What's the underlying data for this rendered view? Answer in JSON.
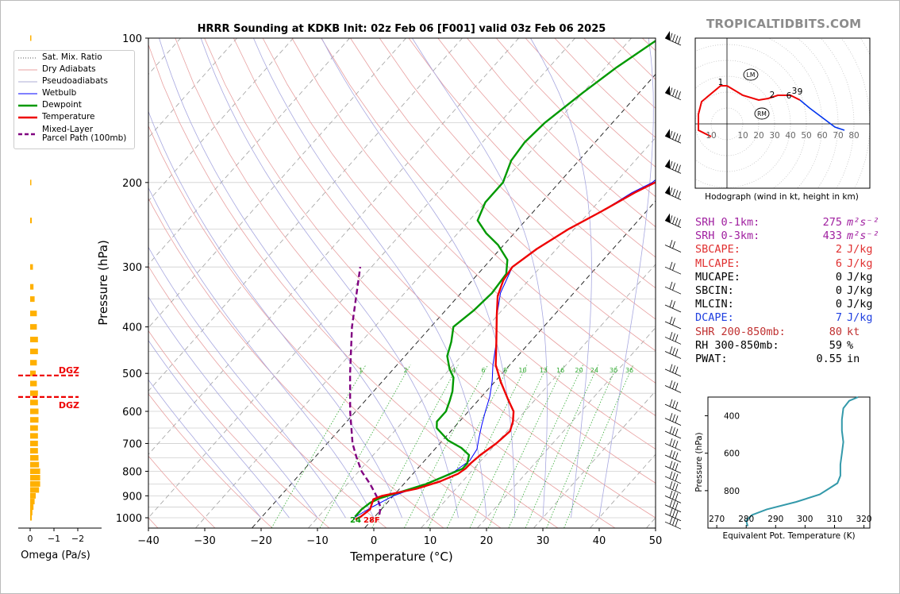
{
  "brand": "TROPICALTIDBITS.COM",
  "chart_data": [
    {
      "type": "line",
      "name": "skew-t",
      "title": "HRRR Sounding at KDKB Init: 02z Feb 06 [F001] valid 03z Feb 06 2025",
      "xlabel": "Temperature (°C)",
      "ylabel": "Pressure (hPa)",
      "xlim": [
        -40,
        50
      ],
      "ylim": [
        1050,
        100
      ],
      "y_scale": "log",
      "x_ticks": [
        -40,
        -30,
        -20,
        -10,
        0,
        10,
        20,
        30,
        40,
        50
      ],
      "y_ticks": [
        100,
        200,
        300,
        400,
        500,
        600,
        700,
        800,
        900,
        1000
      ],
      "mixing_ratio_labels": [
        "1",
        "2",
        "4",
        "6",
        "8",
        "10",
        "13",
        "16",
        "20",
        "24",
        "30",
        "36"
      ],
      "surface_labels": {
        "dewpoint": "24",
        "temperature": "28F"
      },
      "legend": [
        {
          "label": "Sat. Mix. Ratio",
          "color": "#555555",
          "style": "dotted"
        },
        {
          "label": "Dry Adiabats",
          "color": "#e08080",
          "style": "solid-thin"
        },
        {
          "label": "Pseudoadiabats",
          "color": "#9090c8",
          "style": "solid-thin"
        },
        {
          "label": "Wetbulb",
          "color": "#0000ff",
          "style": "solid"
        },
        {
          "label": "Dewpoint",
          "color": "#009900",
          "style": "solid-thick"
        },
        {
          "label": "Temperature",
          "color": "#ee0000",
          "style": "solid-thick"
        },
        {
          "label": "Mixed-Layer\nParcel Path (100mb)",
          "color": "#800080",
          "style": "dashed"
        }
      ],
      "series": {
        "temperature": [
          [
            1008,
            -3
          ],
          [
            995,
            -2.5
          ],
          [
            960,
            -2
          ],
          [
            915,
            -3
          ],
          [
            900,
            -2
          ],
          [
            870,
            3
          ],
          [
            840,
            6
          ],
          [
            810,
            8
          ],
          [
            790,
            8.5
          ],
          [
            770,
            8.6
          ],
          [
            740,
            9
          ],
          [
            700,
            10
          ],
          [
            660,
            10.5
          ],
          [
            630,
            9.5
          ],
          [
            600,
            8
          ],
          [
            565,
            5
          ],
          [
            520,
            1
          ],
          [
            480,
            -2.5
          ],
          [
            430,
            -6
          ],
          [
            380,
            -10
          ],
          [
            345,
            -13
          ],
          [
            320,
            -14.5
          ],
          [
            300,
            -15
          ],
          [
            275,
            -13.5
          ],
          [
            250,
            -11
          ],
          [
            230,
            -8
          ],
          [
            210,
            -5
          ],
          [
            200,
            -3
          ],
          [
            185,
            -2
          ],
          [
            165,
            -1
          ],
          [
            150,
            -0.5
          ],
          [
            130,
            0
          ],
          [
            115,
            0.3
          ],
          [
            100,
            0.5
          ]
        ],
        "dewpoint": [
          [
            995,
            -3.5
          ],
          [
            960,
            -3.5
          ],
          [
            930,
            -3
          ],
          [
            910,
            -2
          ],
          [
            880,
            1
          ],
          [
            850,
            4
          ],
          [
            820,
            6
          ],
          [
            790,
            8
          ],
          [
            770,
            8
          ],
          [
            740,
            7
          ],
          [
            715,
            4.5
          ],
          [
            690,
            1
          ],
          [
            650,
            -3
          ],
          [
            630,
            -4
          ],
          [
            600,
            -4
          ],
          [
            570,
            -5
          ],
          [
            545,
            -6
          ],
          [
            510,
            -8
          ],
          [
            490,
            -10
          ],
          [
            460,
            -12.5
          ],
          [
            430,
            -14
          ],
          [
            400,
            -16
          ],
          [
            370,
            -15
          ],
          [
            340,
            -14.5
          ],
          [
            310,
            -15
          ],
          [
            290,
            -17
          ],
          [
            270,
            -21
          ],
          [
            255,
            -25
          ],
          [
            240,
            -28.5
          ],
          [
            220,
            -30
          ],
          [
            200,
            -30
          ],
          [
            180,
            -32
          ],
          [
            165,
            -32.5
          ],
          [
            150,
            -32
          ],
          [
            130,
            -30
          ],
          [
            115,
            -28
          ],
          [
            100,
            -25
          ]
        ],
        "wetbulb": [
          [
            1000,
            -3.5
          ],
          [
            950,
            -2
          ],
          [
            900,
            0
          ],
          [
            850,
            4
          ],
          [
            800,
            7
          ],
          [
            760,
            8
          ],
          [
            720,
            7.5
          ],
          [
            680,
            6
          ],
          [
            640,
            4.5
          ],
          [
            600,
            3
          ],
          [
            560,
            1.5
          ],
          [
            520,
            -0.5
          ],
          [
            480,
            -3
          ],
          [
            430,
            -6
          ],
          [
            380,
            -10
          ],
          [
            340,
            -13
          ],
          [
            300,
            -15
          ],
          [
            275,
            -13.5
          ],
          [
            250,
            -11
          ],
          [
            230,
            -8
          ],
          [
            210,
            -5.5
          ],
          [
            200,
            -3.5
          ],
          [
            170,
            -1.5
          ],
          [
            150,
            -0.8
          ],
          [
            130,
            -0.3
          ],
          [
            100,
            0.5
          ]
        ],
        "parcel_path": [
          [
            985,
            0.5
          ],
          [
            950,
            -0.5
          ],
          [
            900,
            -3
          ],
          [
            850,
            -6
          ],
          [
            800,
            -9.5
          ],
          [
            750,
            -12.5
          ],
          [
            700,
            -15.5
          ],
          [
            600,
            -21
          ],
          [
            500,
            -27
          ],
          [
            400,
            -34
          ],
          [
            300,
            -42
          ]
        ]
      },
      "wind_barbs_hPa": [
        100,
        130,
        160,
        185,
        210,
        240,
        270,
        300,
        330,
        360,
        390,
        420,
        450,
        490,
        530,
        580,
        620,
        660,
        700,
        740,
        780,
        820,
        860,
        900,
        940,
        980,
        1020
      ]
    },
    {
      "type": "bar",
      "name": "omega",
      "xlabel": "Omega (Pa/s)",
      "x_ticks": [
        "0",
        "−1",
        "−2"
      ],
      "xlim": [
        1,
        -2.5
      ],
      "dgz_label": "DGZ",
      "dgz_hPa": [
        505,
        560
      ],
      "color": "#ffb000",
      "levels": [
        [
          100,
          0.02
        ],
        [
          150,
          0.02
        ],
        [
          200,
          0.02
        ],
        [
          240,
          0.03
        ],
        [
          300,
          0.05
        ],
        [
          330,
          0.06
        ],
        [
          350,
          0.08
        ],
        [
          375,
          0.12
        ],
        [
          400,
          0.12
        ],
        [
          425,
          0.14
        ],
        [
          450,
          0.14
        ],
        [
          475,
          0.12
        ],
        [
          500,
          0.1
        ],
        [
          525,
          0.12
        ],
        [
          550,
          0.14
        ],
        [
          575,
          0.14
        ],
        [
          600,
          0.15
        ],
        [
          625,
          0.15
        ],
        [
          650,
          0.14
        ],
        [
          675,
          0.14
        ],
        [
          700,
          0.14
        ],
        [
          725,
          0.14
        ],
        [
          750,
          0.15
        ],
        [
          775,
          0.16
        ],
        [
          800,
          0.18
        ],
        [
          825,
          0.18
        ],
        [
          850,
          0.18
        ],
        [
          875,
          0.16
        ],
        [
          900,
          0.1
        ],
        [
          925,
          0.08
        ],
        [
          950,
          0.06
        ],
        [
          975,
          0.04
        ],
        [
          1000,
          0.03
        ]
      ]
    },
    {
      "type": "line",
      "name": "hodograph",
      "xlabel": "Hodograph (wind in kt, height in km)",
      "ring_labels": [
        "10",
        "10",
        "20",
        "30",
        "40",
        "50",
        "60",
        "70",
        "80"
      ],
      "height_labels": [
        "1",
        "2",
        "3",
        "6",
        "9"
      ],
      "markers": [
        "LM",
        "RM"
      ],
      "red_path": [
        [
          -10,
          -8
        ],
        [
          -18,
          -4
        ],
        [
          -18,
          6
        ],
        [
          -16,
          14
        ],
        [
          -4,
          24
        ],
        [
          0,
          24
        ],
        [
          10,
          18
        ],
        [
          20,
          15
        ],
        [
          26,
          16
        ],
        [
          32,
          18
        ],
        [
          40,
          18
        ],
        [
          44,
          16
        ],
        [
          46,
          15
        ]
      ],
      "blue_path": [
        [
          46,
          15
        ],
        [
          52,
          10
        ],
        [
          60,
          4
        ],
        [
          68,
          -2
        ],
        [
          74,
          -4
        ]
      ]
    },
    {
      "type": "line",
      "name": "theta-e",
      "xlabel": "Equivalent Pot. Temperature (K)",
      "ylabel": "Pressure (hPa)",
      "x_ticks": [
        "270",
        "280",
        "290",
        "300",
        "310",
        "320"
      ],
      "y_ticks": [
        "400",
        "600",
        "800"
      ],
      "xlim": [
        267,
        322
      ],
      "ylim": [
        1000,
        300
      ],
      "color": "#3399aa",
      "profile": [
        [
          300,
          318
        ],
        [
          320,
          315
        ],
        [
          360,
          313
        ],
        [
          420,
          312.5
        ],
        [
          480,
          312.5
        ],
        [
          540,
          313
        ],
        [
          600,
          312.5
        ],
        [
          660,
          312
        ],
        [
          720,
          312
        ],
        [
          760,
          311
        ],
        [
          790,
          308
        ],
        [
          820,
          305
        ],
        [
          860,
          297
        ],
        [
          900,
          287
        ],
        [
          930,
          282
        ],
        [
          960,
          280
        ],
        [
          990,
          280.5
        ]
      ]
    }
  ],
  "params": [
    {
      "label": "SRH 0-1km:",
      "value": "275",
      "unit": "m²s⁻²",
      "color": "#a020a0"
    },
    {
      "label": "SRH 0-3km:",
      "value": "433",
      "unit": "m²s⁻²",
      "color": "#a020a0"
    },
    {
      "label": "SBCAPE:",
      "value": "2",
      "unit": "J/kg",
      "color": "#e03030"
    },
    {
      "label": "MLCAPE:",
      "value": "6",
      "unit": "J/kg",
      "color": "#e03030"
    },
    {
      "label": "MUCAPE:",
      "value": "0",
      "unit": "J/kg",
      "color": "#000000"
    },
    {
      "label": "SBCIN:",
      "value": "0",
      "unit": "J/kg",
      "color": "#000000"
    },
    {
      "label": "MLCIN:",
      "value": "0",
      "unit": "J/kg",
      "color": "#000000"
    },
    {
      "label": "DCAPE:",
      "value": "7",
      "unit": "J/kg",
      "color": "#2040e0"
    },
    {
      "label": "SHR 200-850mb:",
      "value": "80",
      "unit": "kt",
      "color": "#c03030"
    },
    {
      "label": "RH 300-850mb:",
      "value": "59",
      "unit": "%",
      "color": "#000000"
    },
    {
      "label": "PWAT:",
      "value": "0.55",
      "unit": "in",
      "color": "#000000"
    }
  ]
}
